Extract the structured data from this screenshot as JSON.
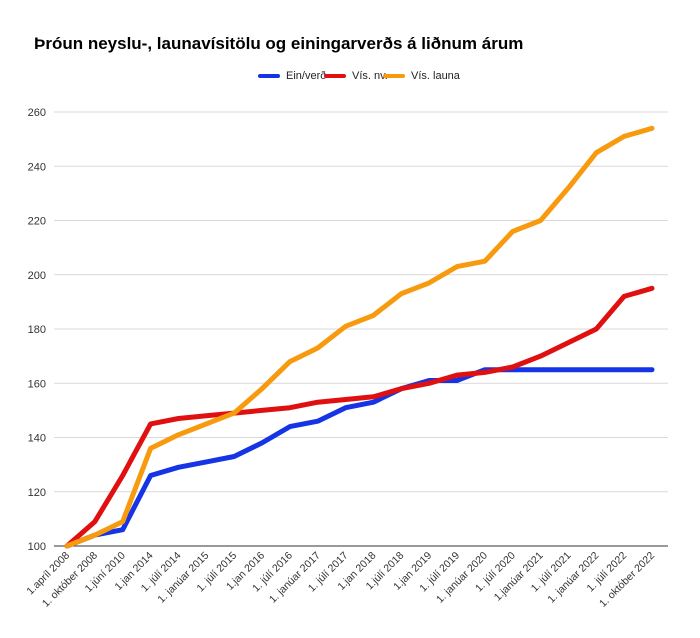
{
  "chart_data": {
    "type": "line",
    "title": "Þróun neyslu-, launavísitölu og einingarverðs á liðnum árum",
    "xlabel": "",
    "ylabel": "",
    "ylim": [
      100,
      260
    ],
    "yticks": [
      100,
      120,
      140,
      160,
      180,
      200,
      220,
      240,
      260
    ],
    "grid": true,
    "legend_position": "top",
    "categories": [
      "1.apríl 2008",
      "1. október 2008",
      "1.júní 2010",
      "1.jan 2014",
      "1. júlí 2014",
      "1. janúar 2015",
      "1. júlí 2015",
      "1.jan 2016",
      "1. júlí 2016",
      "1. janúar 2017",
      "1. júlí 2017",
      "1.jan 2018",
      "1.júlí 2018",
      "1.jan 2019",
      "1. júlí 2019",
      "1. janúar 2020",
      "1. júlí 2020",
      "1.janúar 2021",
      "1. júlí 2021",
      "1. janúar 2022",
      "1. júlí 2022",
      "1. október 2022"
    ],
    "series": [
      {
        "name": "Ein/verð",
        "color": "#1434e6",
        "values": [
          100,
          104,
          106,
          126,
          129,
          131,
          133,
          138,
          144,
          146,
          151,
          153,
          158,
          161,
          161,
          165,
          165,
          165,
          165,
          165,
          165,
          165
        ]
      },
      {
        "name": "Vís. nv.",
        "color": "#e01010",
        "values": [
          100,
          109,
          126,
          145,
          147,
          148,
          149,
          150,
          151,
          153,
          154,
          155,
          158,
          160,
          163,
          164,
          166,
          170,
          175,
          180,
          192,
          195
        ]
      },
      {
        "name": "Vís. launa",
        "color": "#f79a0e",
        "values": [
          100,
          104,
          109,
          136,
          141,
          145,
          149,
          158,
          168,
          173,
          181,
          185,
          193,
          197,
          203,
          205,
          216,
          220,
          232,
          245,
          251,
          254
        ]
      }
    ]
  }
}
